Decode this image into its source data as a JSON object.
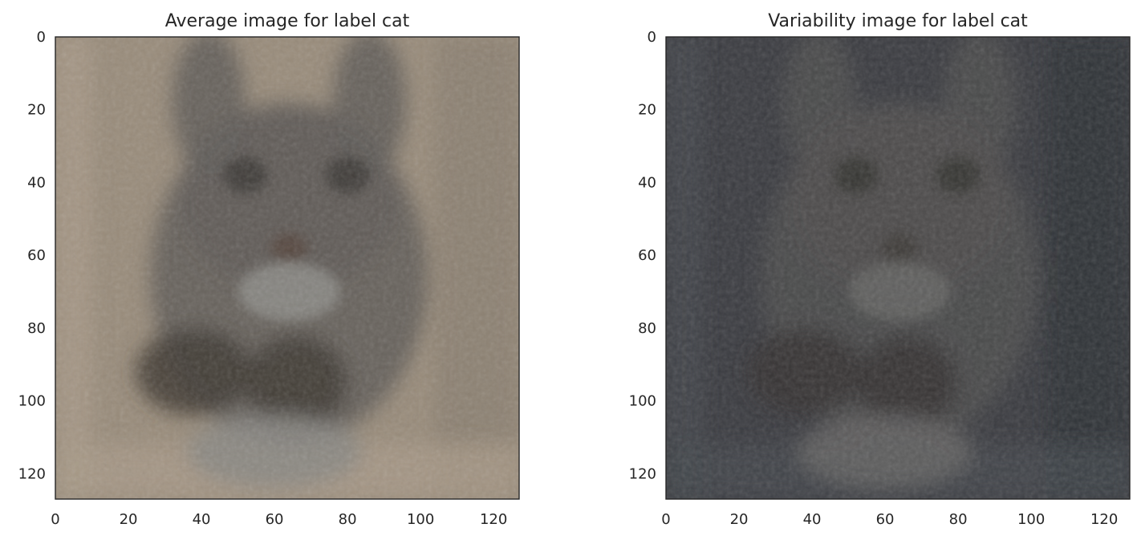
{
  "chart_data": [
    {
      "type": "heatmap",
      "title": "Average image for label cat",
      "xlabel": "",
      "ylabel": "",
      "xlim": [
        0,
        127
      ],
      "ylim": [
        127,
        0
      ],
      "x_ticks": [
        "0",
        "20",
        "40",
        "60",
        "80",
        "100",
        "120"
      ],
      "y_ticks": [
        "0",
        "20",
        "40",
        "60",
        "80",
        "100",
        "120"
      ],
      "grid": false,
      "palette": {
        "background": "#998c7b",
        "background_dark": "#8a7f70",
        "background_light": "#a89a88",
        "subject": "#5f5c58",
        "subject_dark": "#403a34",
        "subject_light": "#8a8884",
        "eye": "#3e3b36",
        "nose": "#54463d"
      }
    },
    {
      "type": "heatmap",
      "title": "Variability image for label cat",
      "xlabel": "",
      "ylabel": "",
      "xlim": [
        0,
        127
      ],
      "ylim": [
        127,
        0
      ],
      "x_ticks": [
        "0",
        "20",
        "40",
        "60",
        "80",
        "100",
        "120"
      ],
      "y_ticks": [
        "0",
        "20",
        "40",
        "60",
        "80",
        "100",
        "120"
      ],
      "grid": false,
      "palette": {
        "background": "#3b3c41",
        "background_dark": "#2f3035",
        "background_light": "#43474c",
        "subject": "#4d4c4c",
        "subject_dark": "#363434",
        "subject_light": "#636261",
        "eye": "#353431",
        "nose": "#3f3a36"
      }
    }
  ]
}
